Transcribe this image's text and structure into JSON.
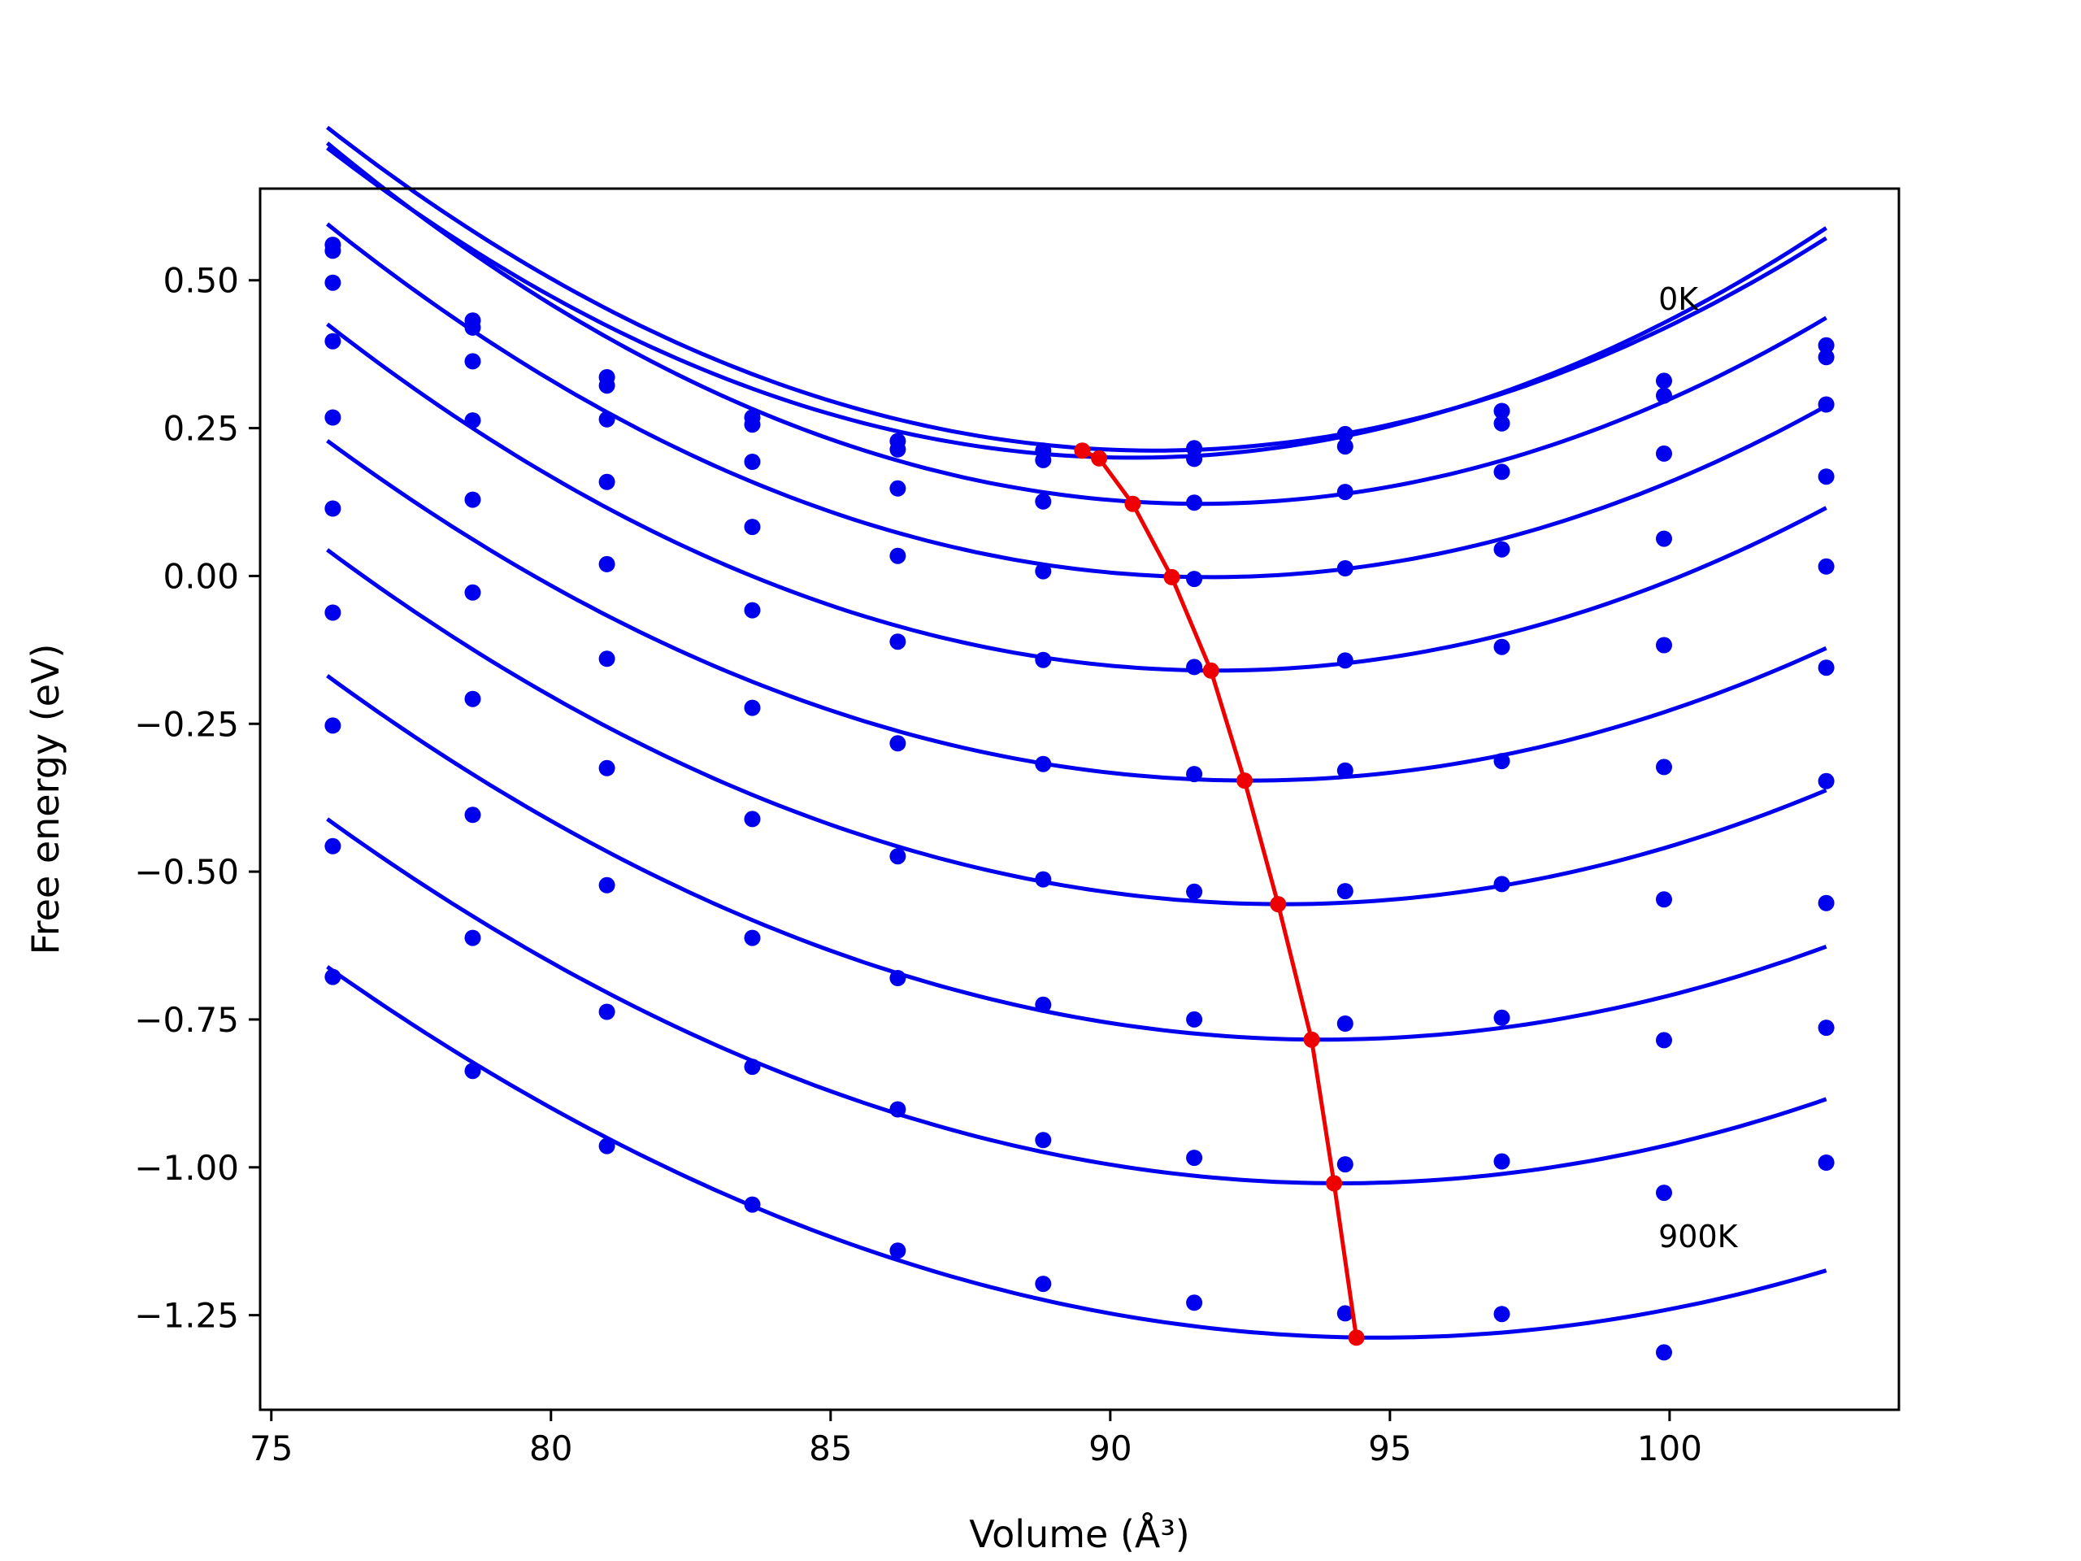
{
  "chart_data": {
    "type": "line",
    "xlabel": "Volume (Å³)",
    "ylabel": "Free energy (eV)",
    "xlim": [
      74.8,
      104.1
    ],
    "ylim": [
      -1.41,
      0.655
    ],
    "xticks": [
      75,
      80,
      85,
      90,
      95,
      100
    ],
    "yticks": [
      0.5,
      0.25,
      0.0,
      -0.25,
      -0.5,
      -0.75,
      -1.0,
      -1.25
    ],
    "xtick_labels": [
      "75",
      "80",
      "85",
      "90",
      "95",
      "100"
    ],
    "ytick_labels": [
      "0.50",
      "0.25",
      "0.00",
      "−0.25",
      "−0.50",
      "−0.75",
      "−1.00",
      "−1.25"
    ],
    "grid": false,
    "annotations": [
      {
        "text": "0K",
        "x": 99.8,
        "y": 0.45
      },
      {
        "text": "900K",
        "x": 99.8,
        "y": -1.135
      }
    ],
    "volumes": [
      76.1,
      78.6,
      81.0,
      83.6,
      86.2,
      88.8,
      91.5,
      94.2,
      97.0,
      99.9,
      102.8
    ],
    "series": [
      {
        "color": "#0000ee",
        "values": [
          0.56,
          0.432,
          0.336,
          0.268,
          0.228,
          0.212,
          0.216,
          0.24,
          0.279,
          0.33,
          0.39
        ]
      },
      {
        "color": "#0000ee",
        "values": [
          0.55,
          0.42,
          0.322,
          0.256,
          0.214,
          0.196,
          0.198,
          0.219,
          0.258,
          0.305,
          0.37
        ]
      },
      {
        "color": "#0000ee",
        "values": [
          0.496,
          0.363,
          0.265,
          0.193,
          0.148,
          0.126,
          0.124,
          0.142,
          0.176,
          0.207,
          0.29
        ]
      },
      {
        "color": "#0000ee",
        "values": [
          0.397,
          0.263,
          0.159,
          0.083,
          0.034,
          0.008,
          -0.005,
          0.013,
          0.045,
          0.063,
          0.168
        ]
      },
      {
        "color": "#0000ee",
        "values": [
          0.268,
          0.129,
          0.02,
          -0.058,
          -0.111,
          -0.142,
          -0.154,
          -0.143,
          -0.12,
          -0.117,
          0.016
        ]
      },
      {
        "color": "#0000ee",
        "values": [
          0.114,
          -0.028,
          -0.14,
          -0.223,
          -0.283,
          -0.318,
          -0.335,
          -0.329,
          -0.313,
          -0.323,
          -0.155
        ]
      },
      {
        "color": "#0000ee",
        "values": [
          -0.062,
          -0.208,
          -0.325,
          -0.411,
          -0.474,
          -0.513,
          -0.534,
          -0.533,
          -0.521,
          -0.547,
          -0.347
        ]
      },
      {
        "color": "#0000ee",
        "values": [
          -0.253,
          -0.404,
          -0.523,
          -0.612,
          -0.68,
          -0.725,
          -0.75,
          -0.757,
          -0.747,
          -0.785,
          -0.553
        ]
      },
      {
        "color": "#0000ee",
        "values": [
          -0.457,
          -0.612,
          -0.737,
          -0.83,
          -0.902,
          -0.954,
          -0.984,
          -0.995,
          -0.99,
          -1.043,
          -0.764
        ]
      },
      {
        "color": "#0000ee",
        "values": [
          -0.678,
          -0.837,
          -0.964,
          -1.063,
          -1.141,
          -1.197,
          -1.229,
          -1.247,
          -1.248,
          -1.313,
          -0.992
        ]
      }
    ],
    "fits": [
      {
        "color": "#0000ee",
        "vmin": 76.0,
        "vmax": 102.8,
        "a": 0.002495,
        "v0": 90.8,
        "e0": 0.212
      },
      {
        "color": "#0000ee",
        "vmin": 76.0,
        "vmax": 102.8,
        "a": 0.002526,
        "v0": 90.4,
        "e0": 0.2
      },
      {
        "color": "#0000ee",
        "vmin": 76.0,
        "vmax": 102.8,
        "a": 0.002507,
        "v0": 91.6,
        "e0": 0.122
      },
      {
        "color": "#0000ee",
        "vmin": 76.0,
        "vmax": 102.8,
        "a": 0.002392,
        "v0": 91.8,
        "e0": -0.002
      },
      {
        "color": "#0000ee",
        "vmin": 76.0,
        "vmax": 102.8,
        "a": 0.002317,
        "v0": 91.9,
        "e0": -0.16
      },
      {
        "color": "#0000ee",
        "vmin": 76.0,
        "vmax": 102.8,
        "a": 0.002111,
        "v0": 92.5,
        "e0": -0.346
      },
      {
        "color": "#0000ee",
        "vmin": 76.0,
        "vmax": 102.8,
        "a": 0.002049,
        "v0": 93.1,
        "e0": -0.555
      },
      {
        "color": "#0000ee",
        "vmin": 76.0,
        "vmax": 102.8,
        "a": 0.001942,
        "v0": 93.8,
        "e0": -0.784
      },
      {
        "color": "#0000ee",
        "vmin": 76.0,
        "vmax": 102.8,
        "a": 0.00188,
        "v0": 94.1,
        "e0": -1.027
      },
      {
        "color": "#0000ee",
        "vmin": 76.0,
        "vmax": 102.8,
        "a": 0.001774,
        "v0": 94.8,
        "e0": -1.288
      }
    ],
    "minima": {
      "color": "#ee0000",
      "x": [
        89.5,
        89.8,
        90.4,
        91.1,
        91.8,
        92.4,
        93.0,
        93.6,
        94.0,
        94.4
      ],
      "y": [
        0.212,
        0.199,
        0.122,
        -0.002,
        -0.16,
        -0.346,
        -0.555,
        -0.784,
        -1.027,
        -1.288
      ]
    }
  }
}
